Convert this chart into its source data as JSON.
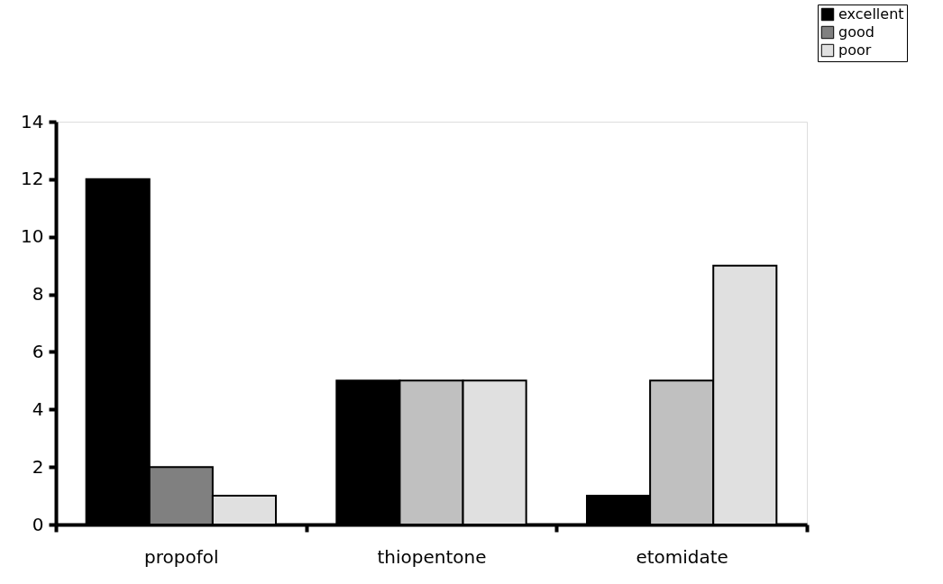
{
  "chart_data": {
    "type": "bar",
    "categories": [
      "propofol",
      "thiopentone",
      "etomidate"
    ],
    "series": [
      {
        "name": "excellent",
        "color": "#000000",
        "values": [
          12,
          5,
          1
        ]
      },
      {
        "name": "good",
        "color": "#808080",
        "colors": [
          "#808080",
          "#c0c0c0",
          "#c0c0c0"
        ],
        "values": [
          2,
          5,
          5
        ]
      },
      {
        "name": "poor",
        "color": "#e0e0e0",
        "values": [
          1,
          5,
          9
        ]
      }
    ],
    "ylim": [
      0,
      14
    ],
    "yticks": [
      0,
      2,
      4,
      6,
      8,
      10,
      12,
      14
    ],
    "grid": false,
    "legend": "top right"
  }
}
